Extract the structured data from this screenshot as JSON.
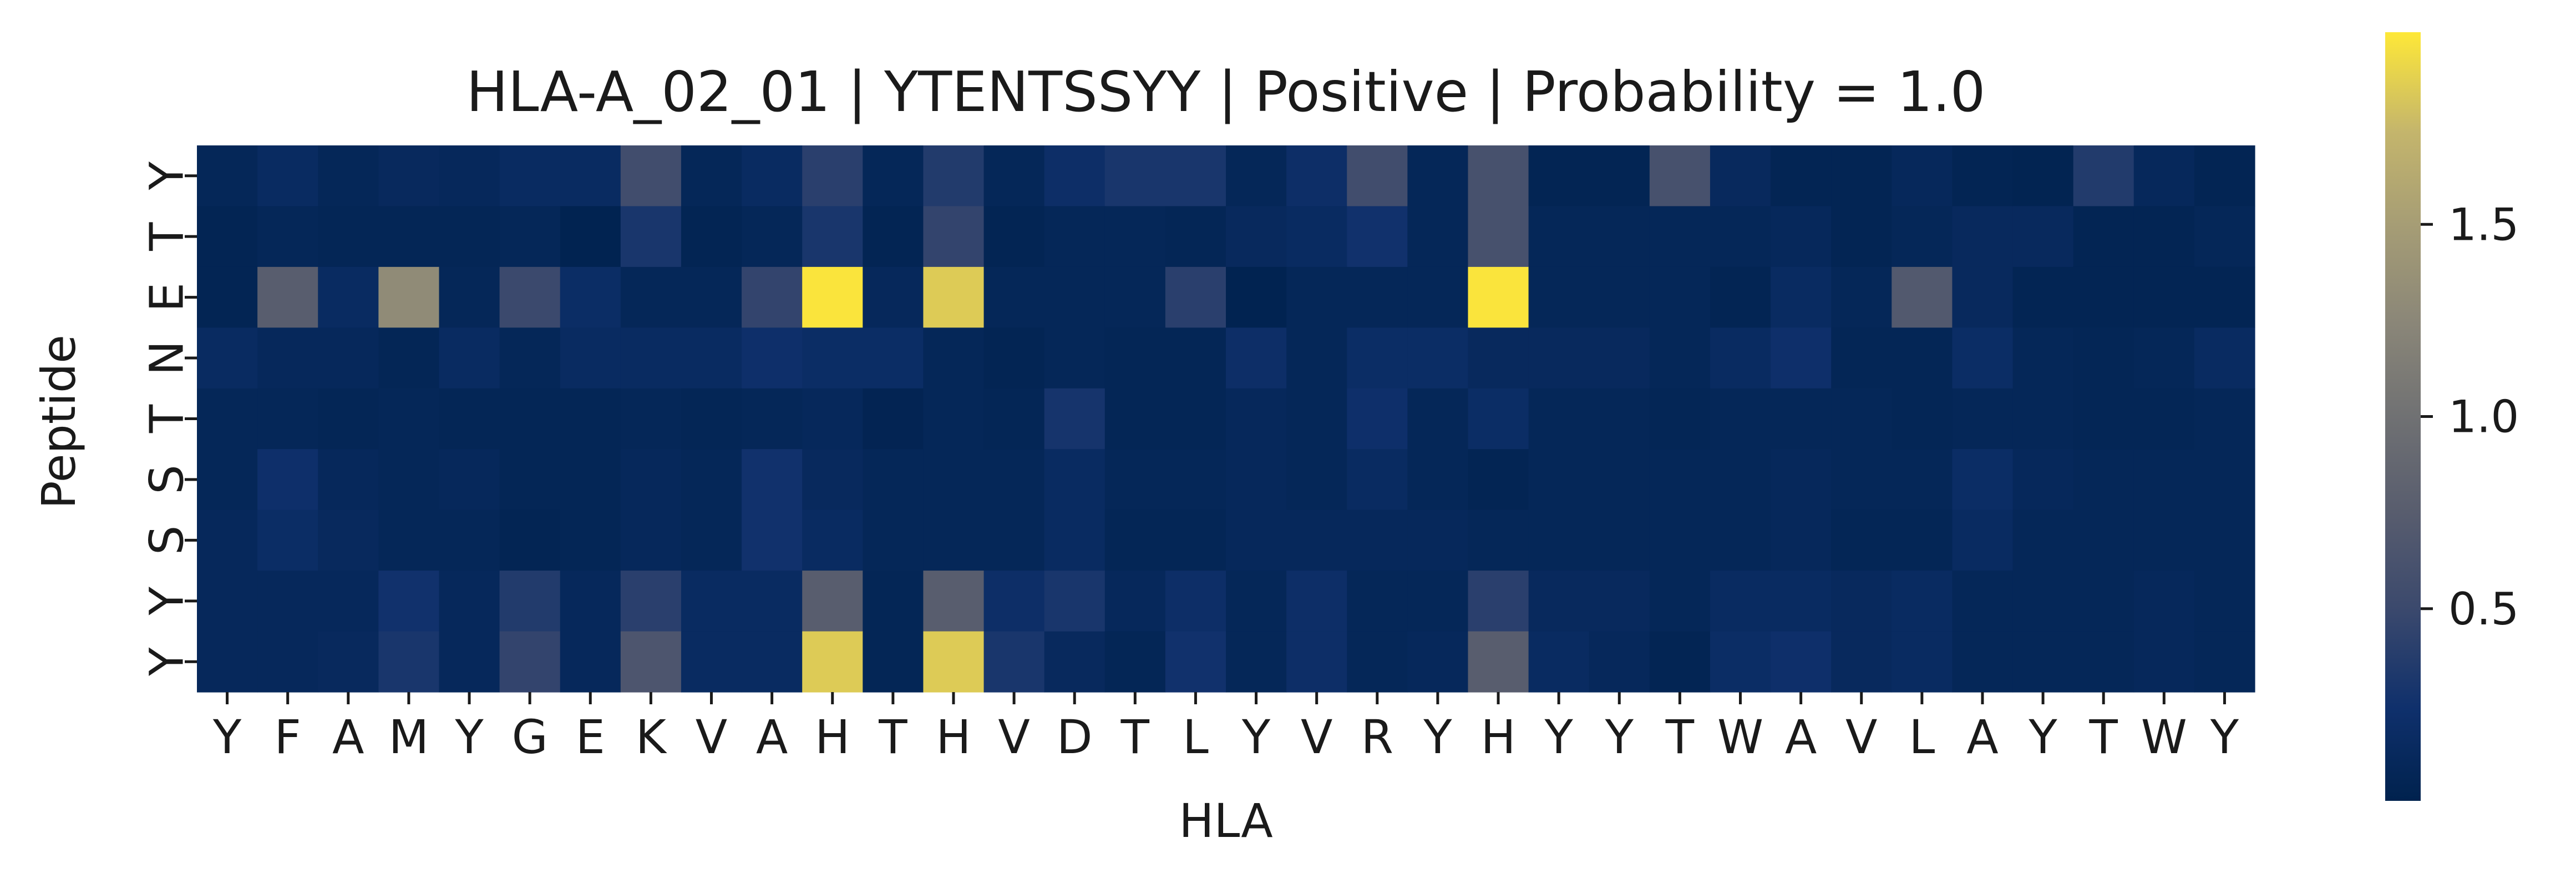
{
  "chart_data": {
    "type": "heatmap",
    "title": "HLA-A_02_01 | YTENTSSYY | Positive | Probability = 1.0",
    "xlabel": "HLA",
    "ylabel": "Peptide",
    "x_categories": [
      "Y",
      "F",
      "A",
      "M",
      "Y",
      "G",
      "E",
      "K",
      "V",
      "A",
      "H",
      "T",
      "H",
      "V",
      "D",
      "T",
      "L",
      "Y",
      "V",
      "R",
      "Y",
      "H",
      "Y",
      "Y",
      "T",
      "W",
      "A",
      "V",
      "L",
      "A",
      "Y",
      "T",
      "W",
      "Y"
    ],
    "y_categories": [
      "Y",
      "T",
      "E",
      "N",
      "T",
      "S",
      "S",
      "Y",
      "Y"
    ],
    "values": [
      [
        0.08,
        0.15,
        0.08,
        0.12,
        0.1,
        0.15,
        0.15,
        0.55,
        0.08,
        0.15,
        0.4,
        0.08,
        0.35,
        0.08,
        0.2,
        0.3,
        0.3,
        0.08,
        0.2,
        0.55,
        0.08,
        0.6,
        0.05,
        0.05,
        0.6,
        0.12,
        0.05,
        0.05,
        0.1,
        0.05,
        0.03,
        0.35,
        0.1,
        0.05
      ],
      [
        0.05,
        0.08,
        0.06,
        0.06,
        0.06,
        0.08,
        0.02,
        0.3,
        0.05,
        0.08,
        0.3,
        0.05,
        0.45,
        0.05,
        0.08,
        0.08,
        0.06,
        0.12,
        0.15,
        0.25,
        0.08,
        0.6,
        0.08,
        0.08,
        0.08,
        0.08,
        0.1,
        0.05,
        0.08,
        0.12,
        0.12,
        0.05,
        0.05,
        0.08
      ],
      [
        0.05,
        0.75,
        0.15,
        1.3,
        0.08,
        0.5,
        0.18,
        0.08,
        0.08,
        0.45,
        1.98,
        0.1,
        1.85,
        0.08,
        0.08,
        0.08,
        0.4,
        0.02,
        0.08,
        0.08,
        0.08,
        1.98,
        0.08,
        0.08,
        0.08,
        0.05,
        0.15,
        0.08,
        0.7,
        0.12,
        0.05,
        0.05,
        0.05,
        0.05
      ],
      [
        0.15,
        0.1,
        0.1,
        0.06,
        0.15,
        0.08,
        0.15,
        0.15,
        0.15,
        0.22,
        0.18,
        0.18,
        0.08,
        0.05,
        0.08,
        0.06,
        0.06,
        0.2,
        0.08,
        0.18,
        0.18,
        0.12,
        0.12,
        0.12,
        0.08,
        0.15,
        0.22,
        0.06,
        0.06,
        0.18,
        0.08,
        0.06,
        0.08,
        0.15
      ],
      [
        0.08,
        0.08,
        0.06,
        0.08,
        0.06,
        0.06,
        0.06,
        0.08,
        0.06,
        0.08,
        0.1,
        0.04,
        0.08,
        0.06,
        0.28,
        0.06,
        0.06,
        0.1,
        0.08,
        0.22,
        0.08,
        0.18,
        0.08,
        0.08,
        0.06,
        0.08,
        0.08,
        0.08,
        0.06,
        0.08,
        0.08,
        0.06,
        0.06,
        0.08
      ],
      [
        0.08,
        0.22,
        0.1,
        0.08,
        0.1,
        0.06,
        0.06,
        0.1,
        0.08,
        0.25,
        0.12,
        0.08,
        0.08,
        0.08,
        0.15,
        0.08,
        0.08,
        0.1,
        0.08,
        0.15,
        0.08,
        0.05,
        0.08,
        0.08,
        0.08,
        0.08,
        0.1,
        0.08,
        0.08,
        0.18,
        0.1,
        0.08,
        0.08,
        0.08
      ],
      [
        0.1,
        0.18,
        0.12,
        0.08,
        0.08,
        0.05,
        0.06,
        0.1,
        0.08,
        0.25,
        0.15,
        0.08,
        0.08,
        0.08,
        0.15,
        0.06,
        0.06,
        0.1,
        0.1,
        0.1,
        0.1,
        0.08,
        0.08,
        0.08,
        0.08,
        0.08,
        0.1,
        0.06,
        0.06,
        0.15,
        0.08,
        0.08,
        0.08,
        0.08
      ],
      [
        0.1,
        0.1,
        0.1,
        0.25,
        0.1,
        0.35,
        0.1,
        0.4,
        0.15,
        0.15,
        0.75,
        0.06,
        0.75,
        0.2,
        0.3,
        0.1,
        0.2,
        0.08,
        0.2,
        0.08,
        0.08,
        0.4,
        0.12,
        0.12,
        0.08,
        0.15,
        0.15,
        0.12,
        0.15,
        0.08,
        0.08,
        0.08,
        0.1,
        0.08
      ],
      [
        0.1,
        0.1,
        0.12,
        0.3,
        0.1,
        0.45,
        0.1,
        0.65,
        0.15,
        0.15,
        1.85,
        0.06,
        1.85,
        0.3,
        0.12,
        0.06,
        0.25,
        0.08,
        0.2,
        0.08,
        0.1,
        0.75,
        0.15,
        0.1,
        0.05,
        0.18,
        0.22,
        0.12,
        0.15,
        0.08,
        0.08,
        0.08,
        0.1,
        0.08
      ]
    ],
    "colormap": "cividis",
    "vmin": 0.0,
    "vmax": 2.0,
    "colorbar_ticks": [
      "0.5",
      "1.0",
      "1.5"
    ],
    "colorbar_tick_values": [
      0.5,
      1.0,
      1.5
    ],
    "legend": "right"
  }
}
